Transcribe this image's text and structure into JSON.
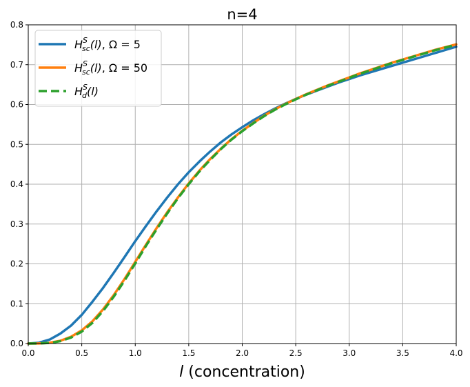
{
  "chart_data": {
    "type": "line",
    "title": "n=4",
    "xlabel_var": "l",
    "xlabel_rest": " (concentration)",
    "xlim": [
      0.0,
      4.0
    ],
    "ylim": [
      0.0,
      0.8
    ],
    "xticks": [
      "0.0",
      "0.5",
      "1.0",
      "1.5",
      "2.0",
      "2.5",
      "3.0",
      "3.5",
      "4.0"
    ],
    "yticks": [
      "0.0",
      "0.1",
      "0.2",
      "0.3",
      "0.4",
      "0.5",
      "0.6",
      "0.7",
      "0.8"
    ],
    "grid": true,
    "legend_position": "upper-left",
    "x": [
      0.0,
      0.1,
      0.2,
      0.3,
      0.4,
      0.5,
      0.6,
      0.7,
      0.8,
      0.9,
      1.0,
      1.1,
      1.2,
      1.3,
      1.4,
      1.5,
      1.6,
      1.7,
      1.8,
      1.9,
      2.0,
      2.1,
      2.2,
      2.3,
      2.4,
      2.5,
      2.6,
      2.7,
      2.8,
      2.9,
      3.0,
      3.1,
      3.2,
      3.3,
      3.4,
      3.5,
      3.6,
      3.7,
      3.8,
      3.9,
      4.0
    ],
    "series": [
      {
        "legend": {
          "sym": "H",
          "sup": "S",
          "sub": "sc",
          "arg": "(l)",
          "param": ", Ω = 5"
        },
        "color": "#1f77b4",
        "dash": "solid",
        "values": [
          0.0,
          0.002,
          0.01,
          0.025,
          0.045,
          0.072,
          0.105,
          0.14,
          0.178,
          0.217,
          0.257,
          0.295,
          0.332,
          0.367,
          0.4,
          0.43,
          0.457,
          0.482,
          0.505,
          0.525,
          0.543,
          0.56,
          0.575,
          0.589,
          0.602,
          0.614,
          0.625,
          0.635,
          0.645,
          0.655,
          0.664,
          0.673,
          0.681,
          0.689,
          0.697,
          0.705,
          0.713,
          0.721,
          0.729,
          0.737,
          0.745
        ]
      },
      {
        "legend": {
          "sym": "H",
          "sup": "S",
          "sub": "sc",
          "arg": "(l)",
          "param": ", Ω = 50"
        },
        "color": "#ff7f0e",
        "dash": "solid",
        "values": [
          0.0,
          0.0003,
          0.002,
          0.007,
          0.017,
          0.033,
          0.056,
          0.086,
          0.122,
          0.162,
          0.205,
          0.248,
          0.29,
          0.33,
          0.367,
          0.402,
          0.434,
          0.463,
          0.489,
          0.513,
          0.534,
          0.553,
          0.571,
          0.587,
          0.601,
          0.614,
          0.626,
          0.637,
          0.648,
          0.658,
          0.668,
          0.678,
          0.687,
          0.696,
          0.705,
          0.713,
          0.721,
          0.729,
          0.737,
          0.744,
          0.751
        ]
      },
      {
        "legend": {
          "sym": "H",
          "sup": "S",
          "sub": "d",
          "arg": "(l)",
          "param": ""
        },
        "color": "#2ca02c",
        "dash": "dashed",
        "values": [
          0.0,
          0.0002,
          0.0015,
          0.006,
          0.015,
          0.03,
          0.052,
          0.082,
          0.118,
          0.158,
          0.201,
          0.245,
          0.287,
          0.327,
          0.365,
          0.4,
          0.432,
          0.461,
          0.488,
          0.512,
          0.533,
          0.552,
          0.57,
          0.586,
          0.6,
          0.613,
          0.625,
          0.636,
          0.647,
          0.657,
          0.667,
          0.677,
          0.686,
          0.695,
          0.704,
          0.712,
          0.72,
          0.728,
          0.736,
          0.743,
          0.75
        ]
      }
    ]
  }
}
